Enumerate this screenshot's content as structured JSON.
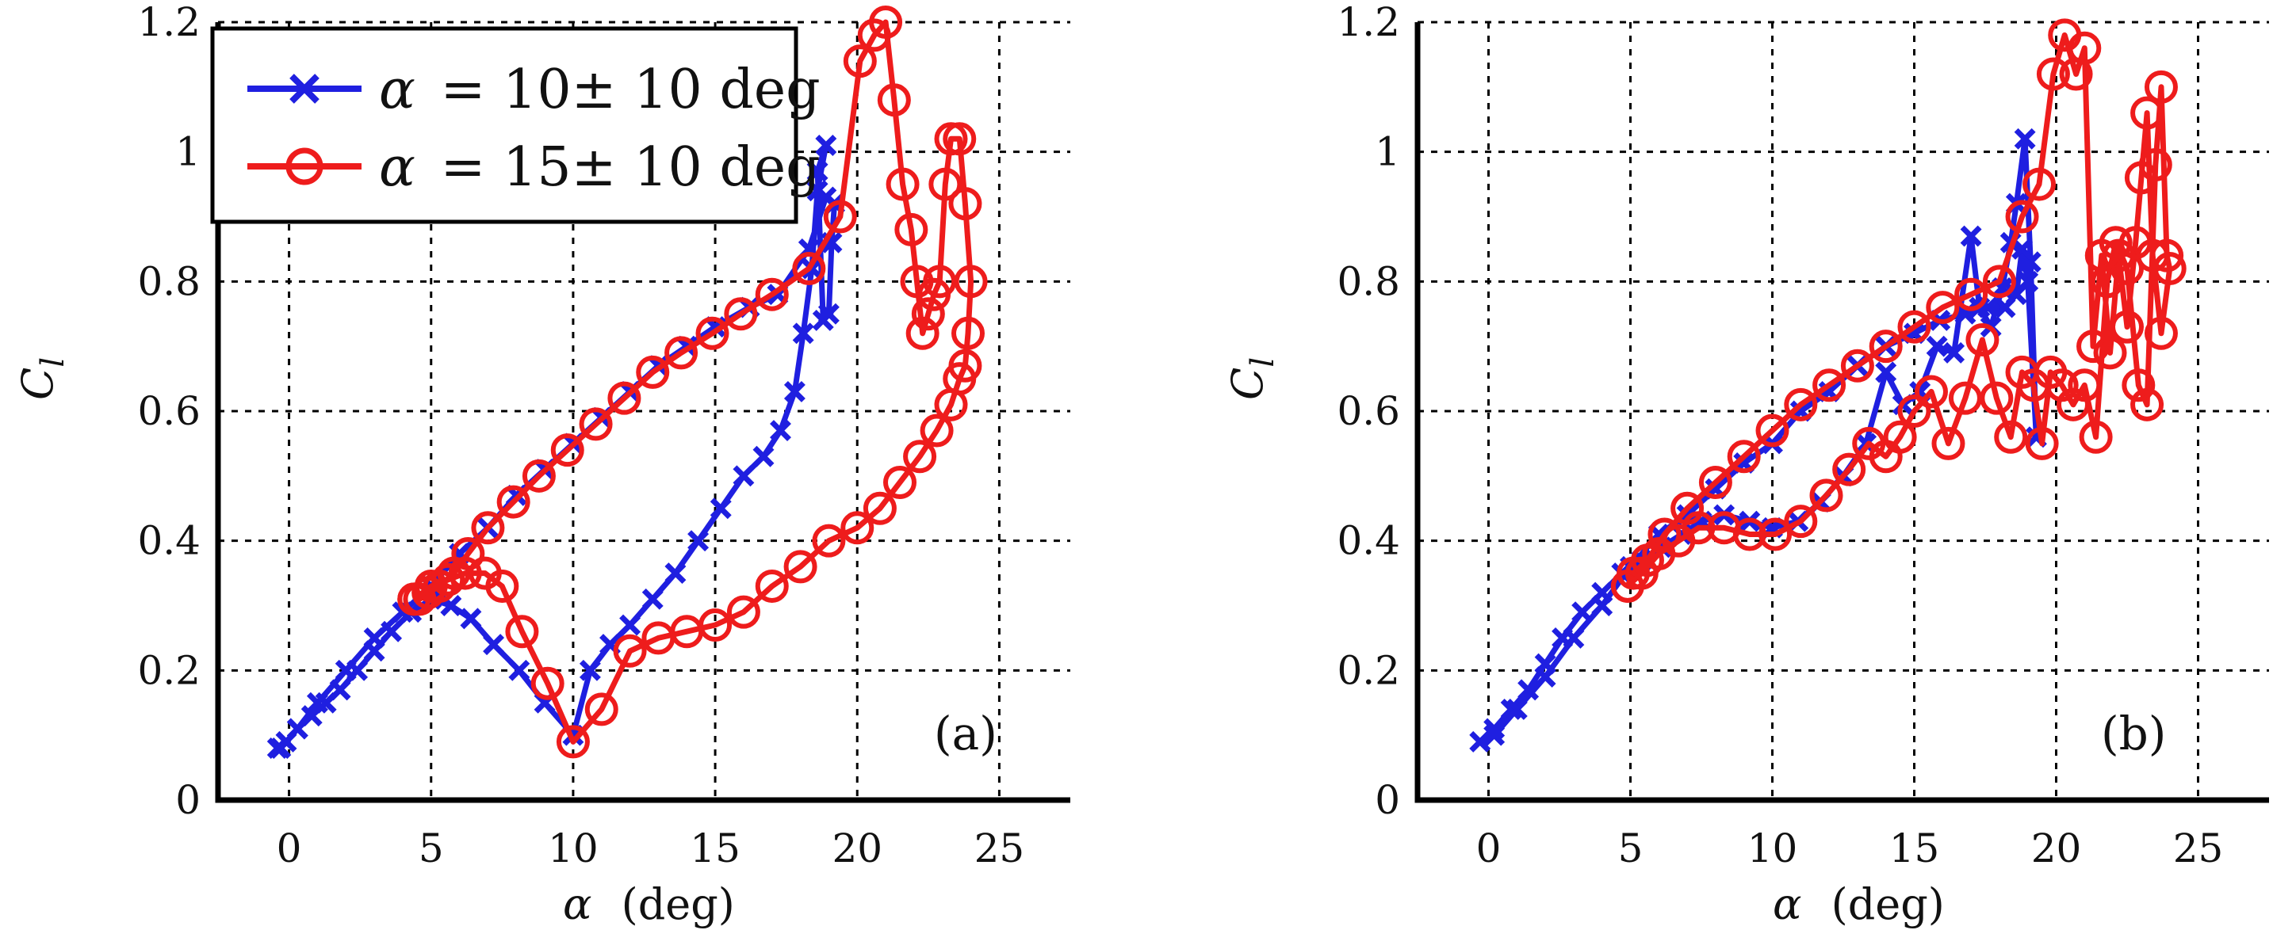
{
  "colors": {
    "series_a": "#1f1fe0",
    "series_b": "#ee1c1c",
    "grid": "#000000",
    "axis": "#000000"
  },
  "chart_data": [
    {
      "type": "line",
      "panel_label": "(a)",
      "xlabel_symbol": "α",
      "xlabel_unit": "(deg)",
      "ylabel_main": "C",
      "ylabel_sub": "l",
      "xlim": [
        -2.5,
        27.5
      ],
      "ylim": [
        0,
        1.2
      ],
      "xticks": [
        "0",
        "5",
        "10",
        "15",
        "20",
        "25"
      ],
      "yticks": [
        "0",
        "0.2",
        "0.4",
        "0.6",
        "0.8",
        "1",
        "1.2"
      ],
      "grid": true,
      "legend_position": "top-left",
      "series": [
        {
          "name": "α = 10± 10 deg",
          "legend_symbol": "α",
          "legend_rest": "= 10± 10 deg",
          "marker": "x",
          "color": "#1f1fe0",
          "x": [
            -0.4,
            -0.1,
            0.3,
            0.8,
            1.3,
            1.8,
            2.4,
            3.0,
            3.6,
            4.3,
            5.0,
            5.7,
            6.4,
            7.2,
            8.1,
            9.0,
            10.0,
            10.6,
            11.3,
            12.0,
            12.8,
            13.6,
            14.4,
            15.2,
            16.0,
            16.7,
            17.3,
            17.8,
            18.1,
            18.4,
            18.6,
            18.9,
            18.6,
            18.8,
            19.0,
            19.1,
            19.2,
            18.9,
            18.3,
            17.2,
            16.2,
            15.0,
            14.0,
            13.0,
            12.0,
            11.0,
            10.0,
            9.0,
            8.0,
            7.0,
            6.0,
            5.0,
            4.0,
            3.0,
            2.0,
            1.0,
            0.3,
            -0.3
          ],
          "y": [
            0.08,
            0.09,
            0.11,
            0.13,
            0.15,
            0.17,
            0.2,
            0.23,
            0.26,
            0.29,
            0.31,
            0.3,
            0.28,
            0.24,
            0.2,
            0.15,
            0.1,
            0.2,
            0.24,
            0.27,
            0.31,
            0.35,
            0.4,
            0.45,
            0.5,
            0.53,
            0.57,
            0.63,
            0.72,
            0.82,
            0.94,
            1.01,
            0.97,
            0.74,
            0.75,
            0.86,
            0.92,
            0.93,
            0.85,
            0.78,
            0.76,
            0.73,
            0.7,
            0.67,
            0.63,
            0.59,
            0.55,
            0.51,
            0.47,
            0.42,
            0.38,
            0.33,
            0.29,
            0.25,
            0.2,
            0.15,
            0.11,
            0.08
          ]
        },
        {
          "name": "α = 15± 10 deg",
          "legend_symbol": "α",
          "legend_rest": "= 15± 10 deg",
          "marker": "o",
          "color": "#ee1c1c",
          "x": [
            4.4,
            5.0,
            5.6,
            6.2,
            6.9,
            7.5,
            8.2,
            9.1,
            10.0,
            11.0,
            12.0,
            13.0,
            14.0,
            15.0,
            16.0,
            17.0,
            18.0,
            19.0,
            20.0,
            20.8,
            21.5,
            22.2,
            22.8,
            23.3,
            23.6,
            23.8,
            23.9,
            24.0,
            23.8,
            23.6,
            23.3,
            23.1,
            22.9,
            22.7,
            22.5,
            22.3,
            22.1,
            21.9,
            21.6,
            21.3,
            21.0,
            20.6,
            20.1,
            19.4,
            18.3,
            17.0,
            15.9,
            14.9,
            13.8,
            12.8,
            11.8,
            10.8,
            9.8,
            8.8,
            7.9,
            7.0,
            6.3,
            5.8,
            5.3,
            4.9,
            4.6,
            4.4
          ],
          "y": [
            0.31,
            0.33,
            0.34,
            0.35,
            0.35,
            0.33,
            0.26,
            0.18,
            0.09,
            0.14,
            0.23,
            0.25,
            0.26,
            0.27,
            0.29,
            0.33,
            0.36,
            0.4,
            0.42,
            0.45,
            0.49,
            0.53,
            0.57,
            0.61,
            0.65,
            0.67,
            0.72,
            0.8,
            0.92,
            1.02,
            1.02,
            0.95,
            0.8,
            0.78,
            0.75,
            0.72,
            0.8,
            0.88,
            0.95,
            1.08,
            1.2,
            1.18,
            1.14,
            0.9,
            0.82,
            0.78,
            0.75,
            0.72,
            0.69,
            0.66,
            0.62,
            0.58,
            0.54,
            0.5,
            0.46,
            0.42,
            0.38,
            0.35,
            0.33,
            0.32,
            0.31,
            0.31
          ]
        }
      ]
    },
    {
      "type": "line",
      "panel_label": "(b)",
      "xlabel_symbol": "α",
      "xlabel_unit": "(deg)",
      "ylabel_main": "C",
      "ylabel_sub": "l",
      "xlim": [
        -2.5,
        27.5
      ],
      "ylim": [
        0,
        1.2
      ],
      "xticks": [
        "0",
        "5",
        "10",
        "15",
        "20",
        "25"
      ],
      "yticks": [
        "0",
        "0.2",
        "0.4",
        "0.6",
        "0.8",
        "1",
        "1.2"
      ],
      "grid": true,
      "legend_position": "none",
      "series": [
        {
          "name": "α = 10± 10 deg",
          "marker": "x",
          "color": "#1f1fe0",
          "x": [
            -0.3,
            0.2,
            0.8,
            1.4,
            2.0,
            2.6,
            3.3,
            4.0,
            4.7,
            5.4,
            6.1,
            6.8,
            7.5,
            8.3,
            9.2,
            10.0,
            10.9,
            11.7,
            12.5,
            13.3,
            14.0,
            14.6,
            15.2,
            15.8,
            16.4,
            17.0,
            17.3,
            17.7,
            18.1,
            18.4,
            18.6,
            18.9,
            19.1,
            19.3,
            19.0,
            18.8,
            18.6,
            18.2,
            17.6,
            16.8,
            15.9,
            15.0,
            14.0,
            13.0,
            12.0,
            11.0,
            10.0,
            9.0,
            8.0,
            7.0,
            6.0,
            5.0,
            4.0,
            3.0,
            2.0,
            1.0,
            0.2
          ],
          "y": [
            0.09,
            0.11,
            0.14,
            0.17,
            0.21,
            0.25,
            0.29,
            0.32,
            0.35,
            0.37,
            0.39,
            0.41,
            0.43,
            0.44,
            0.43,
            0.42,
            0.43,
            0.46,
            0.5,
            0.55,
            0.66,
            0.61,
            0.63,
            0.7,
            0.69,
            0.87,
            0.76,
            0.73,
            0.79,
            0.86,
            0.92,
            1.02,
            0.83,
            0.56,
            0.8,
            0.85,
            0.78,
            0.76,
            0.76,
            0.75,
            0.74,
            0.72,
            0.7,
            0.67,
            0.63,
            0.6,
            0.55,
            0.52,
            0.48,
            0.44,
            0.41,
            0.36,
            0.3,
            0.25,
            0.19,
            0.14,
            0.1
          ]
        },
        {
          "name": "α = 15± 10 deg",
          "marker": "o",
          "color": "#ee1c1c",
          "x": [
            4.9,
            5.4,
            6.0,
            6.7,
            7.4,
            8.3,
            9.2,
            10.1,
            11.0,
            11.9,
            12.7,
            13.4,
            14.0,
            14.5,
            15.0,
            15.6,
            16.2,
            16.8,
            17.4,
            17.9,
            18.4,
            18.8,
            19.2,
            19.5,
            19.8,
            20.2,
            20.6,
            21.0,
            21.4,
            21.8,
            22.1,
            22.5,
            22.9,
            23.2,
            23.5,
            23.7,
            23.9,
            24.0,
            23.7,
            23.4,
            23.2,
            23.0,
            22.8,
            22.5,
            22.2,
            21.9,
            21.6,
            21.3,
            21.0,
            20.7,
            20.3,
            19.9,
            19.4,
            18.8,
            18.0,
            17.0,
            16.0,
            15.0,
            14.0,
            13.0,
            12.0,
            11.0,
            10.0,
            9.0,
            8.0,
            7.0,
            6.2,
            5.6,
            5.1,
            4.9
          ],
          "y": [
            0.33,
            0.35,
            0.38,
            0.4,
            0.42,
            0.42,
            0.41,
            0.41,
            0.43,
            0.47,
            0.51,
            0.55,
            0.53,
            0.56,
            0.6,
            0.63,
            0.55,
            0.62,
            0.71,
            0.62,
            0.56,
            0.66,
            0.64,
            0.55,
            0.66,
            0.64,
            0.61,
            0.64,
            0.56,
            0.8,
            0.86,
            0.82,
            0.64,
            0.61,
            0.98,
            1.1,
            0.84,
            0.82,
            0.72,
            0.84,
            1.06,
            0.96,
            0.86,
            0.73,
            0.84,
            0.69,
            0.84,
            0.7,
            1.16,
            1.12,
            1.18,
            1.12,
            0.95,
            0.9,
            0.8,
            0.78,
            0.76,
            0.73,
            0.7,
            0.67,
            0.64,
            0.61,
            0.57,
            0.53,
            0.49,
            0.45,
            0.41,
            0.37,
            0.35,
            0.33
          ]
        }
      ]
    }
  ]
}
